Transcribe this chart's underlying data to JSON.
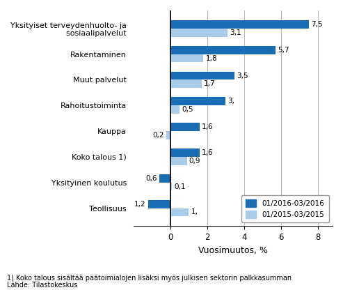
{
  "categories": [
    "Yksityiset terveydenhuolto- ja\n  sosiaalipalvelut",
    "Rakentaminen",
    "Muut palvelut",
    "Rahoitustoiminta",
    "Kauppa",
    "Koko talous 1)",
    "Yksityinen koulutus",
    "Teollisuus"
  ],
  "values_2016": [
    7.5,
    5.7,
    3.5,
    3.0,
    1.6,
    1.6,
    -0.6,
    -1.2
  ],
  "values_2015": [
    3.1,
    1.8,
    1.7,
    0.5,
    -0.2,
    0.9,
    0.1,
    1.0
  ],
  "color_2016": "#1A6DB5",
  "color_2015": "#A8CCEA",
  "xlabel": "Vuosimuutos, %",
  "legend_2016": "01/2016-03/2016",
  "legend_2015": "01/2015-03/2015",
  "xlim_left": -2.0,
  "xlim_right": 8.8,
  "xticks": [
    0,
    2,
    4,
    6,
    8
  ],
  "footnote1": "1) Koko talous sisältää päätoimialojen lisäksi myös julkisen sektorin palkkasumman",
  "footnote2": "Lähde: Tilastokeskus",
  "bar_height": 0.32
}
